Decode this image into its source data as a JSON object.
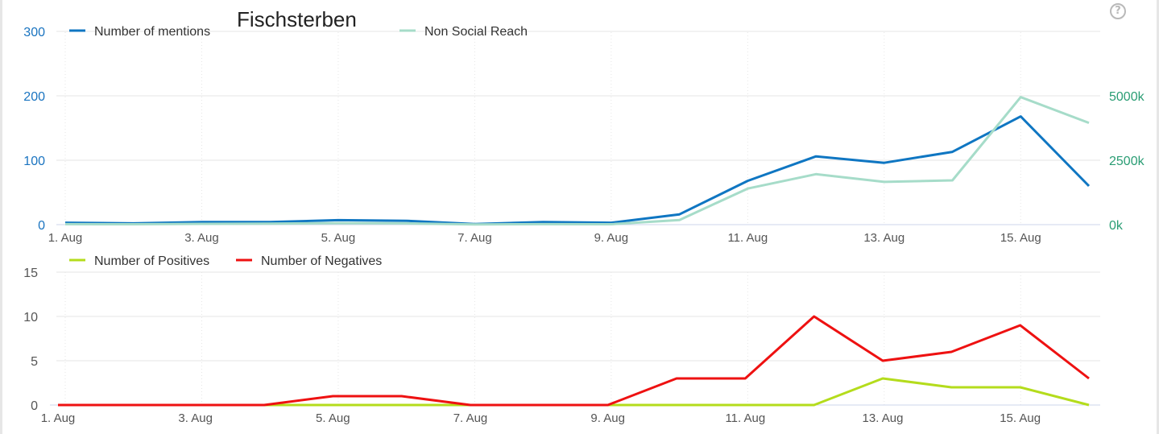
{
  "chart_data": [
    {
      "type": "line",
      "title": "Fischsterben",
      "categories": [
        "1. Aug",
        "2. Aug",
        "3. Aug",
        "4. Aug",
        "5. Aug",
        "6. Aug",
        "7. Aug",
        "8. Aug",
        "9. Aug",
        "10. Aug",
        "11. Aug",
        "12. Aug",
        "13. Aug",
        "14. Aug",
        "15. Aug",
        "16. Aug"
      ],
      "tick_labels": [
        "1. Aug",
        "3. Aug",
        "5. Aug",
        "7. Aug",
        "9. Aug",
        "11. Aug",
        "13. Aug",
        "15. Aug"
      ],
      "y_left": {
        "ylim": [
          0,
          300
        ],
        "ticks": [
          0,
          100,
          200,
          300
        ],
        "tick_labels": [
          "0",
          "100",
          "200",
          "300"
        ]
      },
      "y_right": {
        "ylim": [
          0,
          7500
        ],
        "ticks": [
          0,
          2500,
          5000
        ],
        "tick_labels": [
          "0k",
          "2500k",
          "5000k"
        ],
        "unit": "k"
      },
      "legend_position": "top",
      "series": [
        {
          "name": "Number of mentions",
          "axis": "left",
          "color": "#0f76c2",
          "values": [
            3,
            2,
            4,
            4,
            7,
            6,
            1,
            4,
            3,
            16,
            68,
            106,
            96,
            113,
            168,
            60
          ]
        },
        {
          "name": "Non Social Reach",
          "axis": "right",
          "color": "#a6dcc9",
          "values": [
            20,
            15,
            30,
            40,
            60,
            50,
            10,
            20,
            15,
            180,
            1400,
            1960,
            1660,
            1720,
            4950,
            3950
          ]
        }
      ]
    },
    {
      "type": "line",
      "title": "",
      "categories": [
        "1. Aug",
        "2. Aug",
        "3. Aug",
        "4. Aug",
        "5. Aug",
        "6. Aug",
        "7. Aug",
        "8. Aug",
        "9. Aug",
        "10. Aug",
        "11. Aug",
        "12. Aug",
        "13. Aug",
        "14. Aug",
        "15. Aug",
        "16. Aug"
      ],
      "tick_labels": [
        "1. Aug",
        "3. Aug",
        "5. Aug",
        "7. Aug",
        "9. Aug",
        "11. Aug",
        "13. Aug",
        "15. Aug"
      ],
      "y_left": {
        "ylim": [
          0,
          15
        ],
        "ticks": [
          0,
          5,
          10,
          15
        ],
        "tick_labels": [
          "0",
          "5",
          "10",
          "15"
        ]
      },
      "legend_position": "top-left",
      "series": [
        {
          "name": "Number of Positives",
          "color": "#b4dc1c",
          "values": [
            0,
            0,
            0,
            0,
            0,
            0,
            0,
            0,
            0,
            0,
            0,
            0,
            3,
            2,
            2,
            0
          ]
        },
        {
          "name": "Number of Negatives",
          "color": "#ee1111",
          "values": [
            0,
            0,
            0,
            0,
            1,
            1,
            0,
            0,
            0,
            3,
            3,
            10,
            5,
            6,
            9,
            3
          ]
        }
      ]
    }
  ],
  "ui": {
    "help_label": "?"
  },
  "colors": {
    "grid": "#e6e6e6",
    "axis_text": "#555555",
    "left_axis_blue": "#1a74c0",
    "right_axis_green": "#2a9d74"
  }
}
